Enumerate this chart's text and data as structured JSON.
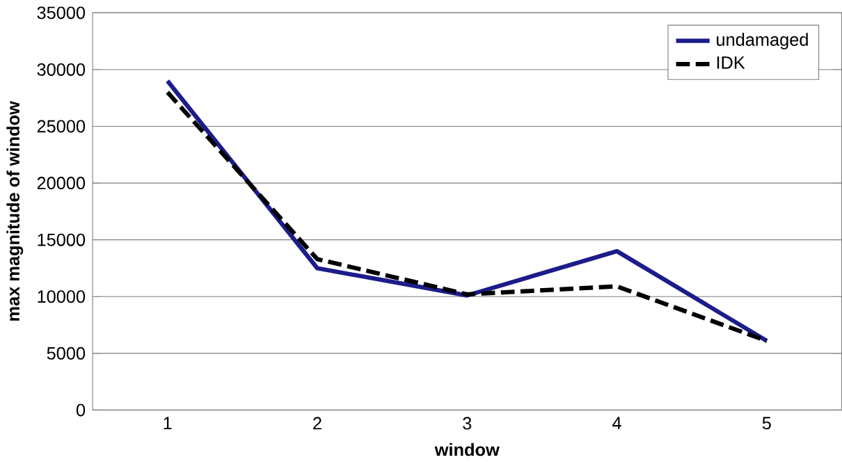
{
  "chart_data": {
    "type": "line",
    "xlabel": "window",
    "ylabel": "max magnitude of window",
    "categories": [
      "1",
      "2",
      "3",
      "4",
      "5"
    ],
    "series": [
      {
        "name": "undamaged",
        "color": "#1c1c8a",
        "line_style": "solid",
        "values": [
          29000,
          12500,
          10100,
          14000,
          6100
        ]
      },
      {
        "name": "IDK",
        "color": "#000000",
        "line_style": "dashed",
        "values": [
          28000,
          13300,
          10200,
          10900,
          6100
        ]
      }
    ],
    "ylim": [
      0,
      35000
    ],
    "yticks": [
      0,
      5000,
      10000,
      15000,
      20000,
      25000,
      30000,
      35000
    ],
    "grid": "y",
    "legend": "top right",
    "marker": "none"
  }
}
